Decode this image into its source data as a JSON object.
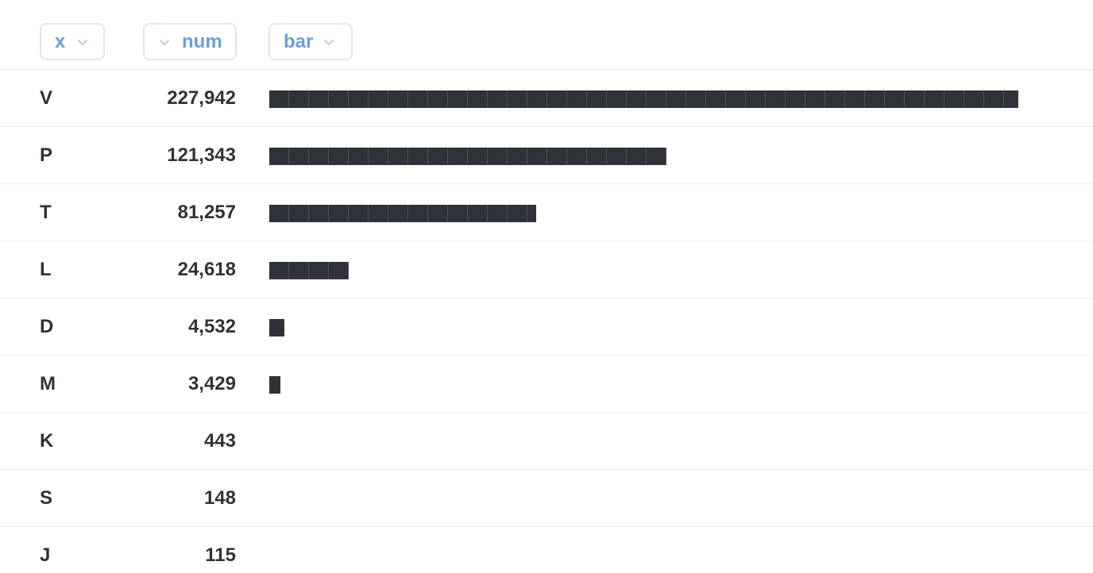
{
  "header": {
    "x_label": "x",
    "num_label": "num",
    "bar_label": "bar"
  },
  "colors": {
    "header_text": "#6a9fdd",
    "header_border": "#dfe6f0",
    "bar_fill": "#2f3239",
    "cell_text": "#2e3338"
  },
  "rows": [
    {
      "x": "V",
      "num": "227,942",
      "value": 227942
    },
    {
      "x": "P",
      "num": "121,343",
      "value": 121343
    },
    {
      "x": "T",
      "num": "81,257",
      "value": 81257
    },
    {
      "x": "L",
      "num": "24,618",
      "value": 24618
    },
    {
      "x": "D",
      "num": "4,532",
      "value": 4532
    },
    {
      "x": "M",
      "num": "3,429",
      "value": 3429
    },
    {
      "x": "K",
      "num": "443",
      "value": 443
    },
    {
      "x": "S",
      "num": "148",
      "value": 148
    },
    {
      "x": "J",
      "num": "115",
      "value": 115
    }
  ],
  "bar_max_value": 227942
}
